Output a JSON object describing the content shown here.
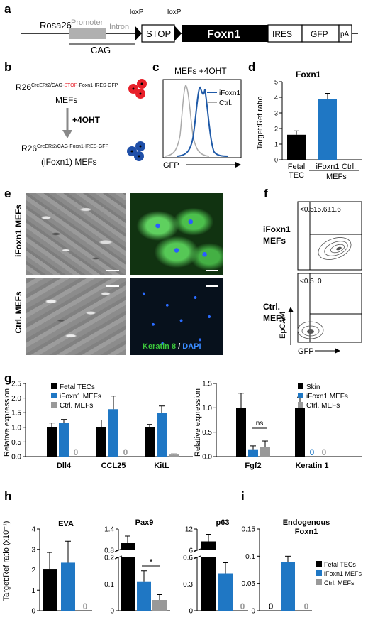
{
  "panels": {
    "a": "a",
    "b": "b",
    "c": "c",
    "d": "d",
    "e": "e",
    "f": "f",
    "g": "g",
    "h": "h",
    "i": "i"
  },
  "panel_a": {
    "rosa26": "Rosa26",
    "promoter": "Promoter",
    "intron": "Intron",
    "cag": "CAG",
    "loxp1": "loxP",
    "loxp2": "loxP",
    "stop": "STOP",
    "foxn1": "Foxn1",
    "ires": "IRES",
    "gfp": "GFP",
    "pa": "pA"
  },
  "panel_b": {
    "top_prefix": "R26",
    "top_sup_a": "CreERt2/CAG-",
    "top_sup_stop": "STOP",
    "top_sup_b": "-Foxn1-IRES-GFP",
    "top_label": "MEFs",
    "treatment": "+4OHT",
    "bottom_prefix": "R26",
    "bottom_sup": "CreERt2/CAG-Foxn1-IRES-GFP",
    "bottom_label": "(iFoxn1) MEFs",
    "colors": {
      "red": "#e8202a",
      "blue": "#1f4fa8"
    }
  },
  "panel_c": {
    "title": "MEFs +4OHT",
    "legend": [
      "iFoxn1",
      "Ctrl."
    ],
    "xlabel": "GFP",
    "colors": {
      "iFoxn1": "#1f5aa8",
      "ctrl": "#aaaaaa"
    }
  },
  "panel_d": {
    "title": "Foxn1",
    "ylabel": "Target:Ref ratio",
    "group_label": "MEFs"
  },
  "panel_e": {
    "row_labels": [
      "iFoxn1 MEFs",
      "Ctrl. MEFs"
    ],
    "stain": "Keratin 8",
    "sep": " / ",
    "dapi": "DAPI",
    "colors": {
      "keratin": "#3cc83c",
      "dapi": "#3a8cff"
    }
  },
  "panel_f": {
    "row1_label": [
      "iFoxn1",
      "MEFs"
    ],
    "row2_label": [
      "Ctrl.",
      "MEFs"
    ],
    "gates_row1": [
      "<0.5",
      "15.6±1.6"
    ],
    "gates_row2": [
      "<0.5",
      "0"
    ],
    "ylabel": "EpCAM",
    "xlabel": "GFP"
  },
  "panel_g": {
    "ylabel": "Relative expression",
    "legend_left": [
      "Fetal TECs",
      "iFoxn1 MEFs",
      "Ctrl. MEFs"
    ],
    "legend_right": [
      "Skin",
      "iFoxn1 MEFs",
      "Ctrl. MEFs"
    ],
    "ns": "ns",
    "zero": "0"
  },
  "panel_h": {
    "ylabel": "Target:Ref ratio (x10⁻¹)",
    "star": "*",
    "zero": "0"
  },
  "panel_i": {
    "title_line1": "Endogenous",
    "title_line2": "Foxn1",
    "legend": [
      "Fetal TECs",
      "iFoxn1 MEFs",
      "Ctrl. MEFs"
    ],
    "zero": "0"
  },
  "colors": {
    "black": "#000000",
    "blue": "#1f77c4",
    "gray": "#999999"
  },
  "chart_data": [
    {
      "id": "d",
      "type": "bar",
      "title": "Foxn1",
      "ylabel": "Target:Ref ratio",
      "categories": [
        "Fetal TEC",
        "iFoxn1",
        "Ctrl."
      ],
      "values": [
        1.6,
        3.9,
        0
      ],
      "errors": [
        0.25,
        0.35,
        0
      ],
      "ylim": [
        0,
        5
      ]
    },
    {
      "id": "g-left",
      "type": "bar",
      "ylabel": "Relative expression",
      "categories": [
        "Dll4",
        "CCL25",
        "KitL"
      ],
      "ylim": [
        0,
        2.5
      ],
      "yticks": [
        0.0,
        0.5,
        1.0,
        1.5,
        2.0,
        2.5
      ],
      "series": [
        {
          "name": "Fetal TECs",
          "values": [
            1.0,
            1.0,
            1.0
          ],
          "errors": [
            0.15,
            0.25,
            0.1
          ]
        },
        {
          "name": "iFoxn1 MEFs",
          "values": [
            1.15,
            1.62,
            1.5
          ],
          "errors": [
            0.12,
            0.45,
            0.23
          ]
        },
        {
          "name": "Ctrl. MEFs",
          "values": [
            0,
            0,
            0.07
          ],
          "errors": [
            0,
            0,
            0.02
          ]
        }
      ]
    },
    {
      "id": "g-right",
      "type": "bar",
      "ylabel": "Relative expression",
      "categories": [
        "Fgf2",
        "Keratin 1"
      ],
      "ylim": [
        0,
        1.5
      ],
      "yticks": [
        0.0,
        0.5,
        1.0,
        1.5
      ],
      "series": [
        {
          "name": "Skin",
          "values": [
            1.0,
            1.0
          ],
          "errors": [
            0.3,
            0.22
          ]
        },
        {
          "name": "iFoxn1 MEFs",
          "values": [
            0.15,
            0
          ],
          "errors": [
            0.07,
            0
          ]
        },
        {
          "name": "Ctrl. MEFs",
          "values": [
            0.2,
            0
          ],
          "errors": [
            0.12,
            0
          ]
        }
      ]
    },
    {
      "id": "h-EVA",
      "type": "bar",
      "title": "EVA",
      "ylabel": "Target:Ref ratio (x10⁻¹)",
      "categories": [
        "Fetal TECs",
        "iFoxn1 MEFs",
        "Ctrl. MEFs"
      ],
      "values": [
        2.05,
        2.35,
        0
      ],
      "errors": [
        0.8,
        1.05,
        0
      ],
      "ylim": [
        0,
        4
      ],
      "yticks": [
        0,
        1,
        2,
        3,
        4
      ]
    },
    {
      "id": "h-Pax9",
      "type": "bar",
      "title": "Pax9",
      "categories": [
        "Fetal TECs",
        "iFoxn1 MEFs",
        "Ctrl. MEFs"
      ],
      "values": [
        1.0,
        0.11,
        0.04
      ],
      "errors": [
        0.2,
        0.04,
        0.02
      ],
      "broken_axis": {
        "lower": [
          0,
          0.2
        ],
        "upper": [
          0.8,
          1.4
        ]
      },
      "yticks": [
        0,
        0.1,
        0.2,
        0.8,
        1.4
      ]
    },
    {
      "id": "h-p63",
      "type": "bar",
      "title": "p63",
      "categories": [
        "Fetal TECs",
        "iFoxn1 MEFs",
        "Ctrl. MEFs"
      ],
      "values": [
        8.5,
        0.42,
        0
      ],
      "errors": [
        2.0,
        0.12,
        0
      ],
      "broken_axis": {
        "lower": [
          0,
          0.6
        ],
        "upper": [
          6,
          12
        ]
      },
      "yticks": [
        0,
        0.3,
        0.6,
        6,
        12
      ]
    },
    {
      "id": "i",
      "type": "bar",
      "title": "Endogenous Foxn1",
      "categories": [
        "Fetal TECs",
        "iFoxn1 MEFs",
        "Ctrl. MEFs"
      ],
      "values": [
        0,
        0.09,
        0
      ],
      "errors": [
        0,
        0.01,
        0
      ],
      "ylim": [
        0,
        0.15
      ],
      "yticks": [
        0,
        0.05,
        0.1,
        0.15
      ]
    }
  ]
}
